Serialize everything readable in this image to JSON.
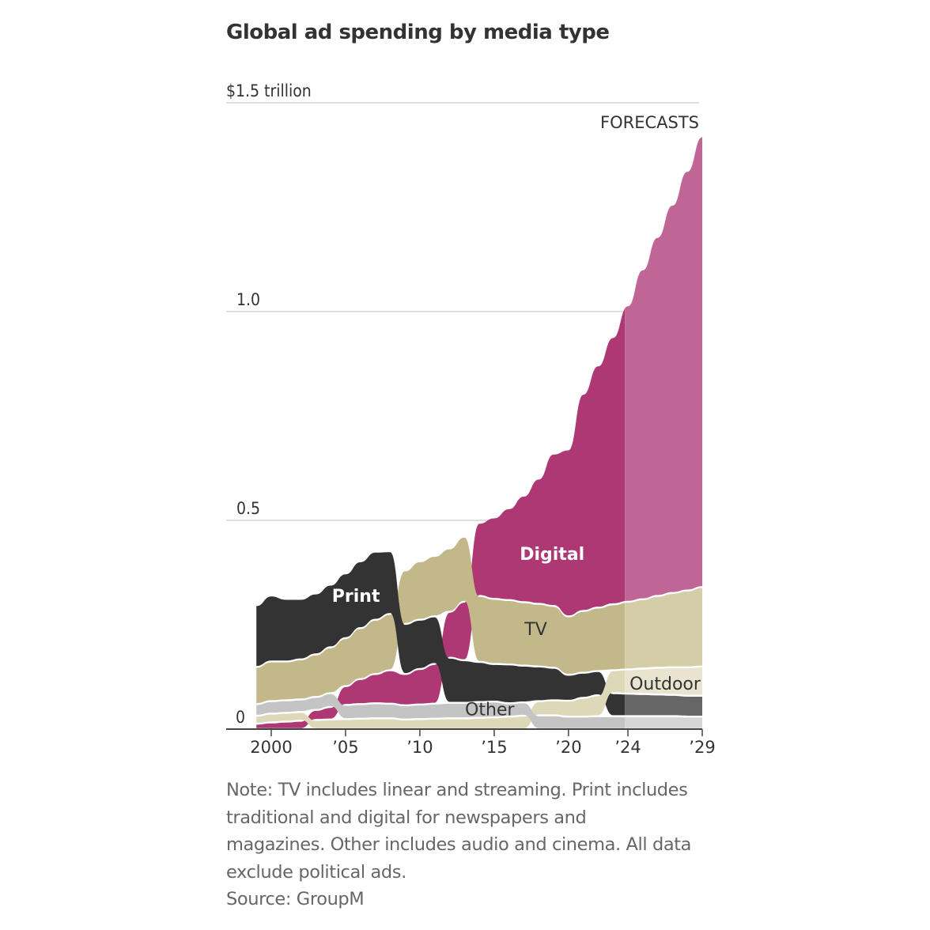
{
  "title": "Global ad spending by media type",
  "note_lines": [
    "Note: TV includes linear and streaming. Print includes",
    "traditional and digital for newspapers and",
    "magazines. Other includes audio and cinema. All data",
    "exclude political ads."
  ],
  "source": "Source: GroupM",
  "chart_data": {
    "type": "area",
    "subtype": "ranked-stacked-area",
    "title": "Global ad spending by media type",
    "ylabel": "$ trillion",
    "ylim": [
      0,
      1.5
    ],
    "y_ticks": [
      {
        "value": 0,
        "label": "0"
      },
      {
        "value": 0.5,
        "label": "0.5"
      },
      {
        "value": 1.0,
        "label": "1.0"
      },
      {
        "value": 1.5,
        "label": "$1.5 trillion"
      }
    ],
    "x_ticks": [
      {
        "value": 2000,
        "label": "2000"
      },
      {
        "value": 2005,
        "label": "’05"
      },
      {
        "value": 2010,
        "label": "’10"
      },
      {
        "value": 2015,
        "label": "’15"
      },
      {
        "value": 2020,
        "label": "’20"
      },
      {
        "value": 2024,
        "label": "’24"
      },
      {
        "value": 2029,
        "label": "’29"
      }
    ],
    "xlim": [
      1998.8,
      2029.4
    ],
    "forecast_start": 2023.8,
    "forecast_label": "FORECASTS",
    "grid": true,
    "x": [
      1999,
      2000,
      2001,
      2002,
      2003,
      2004,
      2005,
      2006,
      2007,
      2008,
      2009,
      2010,
      2011,
      2012,
      2013,
      2014,
      2015,
      2016,
      2017,
      2018,
      2019,
      2020,
      2021,
      2022,
      2023,
      2024,
      2025,
      2026,
      2027,
      2028,
      2029
    ],
    "series": [
      {
        "name": "Digital",
        "label": "Digital",
        "color": "#AD3873",
        "forecast_color": "#BF6696",
        "label_color": "#ffffff",
        "values": [
          0.013,
          0.016,
          0.018,
          0.02,
          0.024,
          0.03,
          0.045,
          0.06,
          0.07,
          0.08,
          0.075,
          0.085,
          0.095,
          0.11,
          0.14,
          0.175,
          0.195,
          0.22,
          0.255,
          0.3,
          0.365,
          0.4,
          0.52,
          0.58,
          0.64,
          0.71,
          0.79,
          0.86,
          0.93,
          1.005,
          1.08
        ]
      },
      {
        "name": "TV",
        "label": "TV",
        "color": "#C2B88A",
        "forecast_color": "#D4CDA8",
        "label_color": "#333333",
        "values": [
          0.089,
          0.095,
          0.093,
          0.096,
          0.102,
          0.11,
          0.115,
          0.122,
          0.13,
          0.135,
          0.128,
          0.14,
          0.145,
          0.152,
          0.156,
          0.158,
          0.156,
          0.154,
          0.152,
          0.15,
          0.148,
          0.14,
          0.148,
          0.152,
          0.158,
          0.162,
          0.166,
          0.172,
          0.178,
          0.184,
          0.19
        ]
      },
      {
        "name": "Print",
        "label": "Print",
        "color": "#333333",
        "forecast_color": "#666666",
        "label_color": "#ffffff",
        "values": [
          0.148,
          0.158,
          0.15,
          0.145,
          0.146,
          0.15,
          0.155,
          0.16,
          0.163,
          0.15,
          0.12,
          0.118,
          0.114,
          0.108,
          0.102,
          0.096,
          0.09,
          0.093,
          0.088,
          0.083,
          0.078,
          0.062,
          0.06,
          0.058,
          0.055,
          0.054,
          0.053,
          0.052,
          0.051,
          0.05,
          0.05
        ]
      },
      {
        "name": "Outdoor",
        "label": "Outdoor",
        "color": "#DDD8B8",
        "forecast_color": "#E8E4CF",
        "label_color": "#333333",
        "values": [
          0.019,
          0.021,
          0.021,
          0.021,
          0.022,
          0.023,
          0.024,
          0.025,
          0.026,
          0.026,
          0.023,
          0.024,
          0.025,
          0.026,
          0.026,
          0.027,
          0.028,
          0.03,
          0.032,
          0.034,
          0.036,
          0.038,
          0.045,
          0.05,
          0.055,
          0.058,
          0.061,
          0.064,
          0.066,
          0.068,
          0.07
        ]
      },
      {
        "name": "Other",
        "label": "Other",
        "color": "#C4C4C4",
        "forecast_color": "#D6D6D6",
        "label_color": "#333333",
        "values": [
          0.028,
          0.03,
          0.03,
          0.03,
          0.031,
          0.033,
          0.034,
          0.035,
          0.036,
          0.035,
          0.034,
          0.035,
          0.036,
          0.037,
          0.037,
          0.038,
          0.038,
          0.032,
          0.032,
          0.033,
          0.033,
          0.03,
          0.03,
          0.031,
          0.031,
          0.031,
          0.031,
          0.031,
          0.031,
          0.03,
          0.03
        ]
      }
    ],
    "annotations": [
      {
        "series": "Print",
        "text": "Print",
        "x": 2005.7,
        "y": 0.305,
        "bold": true
      },
      {
        "series": "Digital",
        "text": "Digital",
        "x": 2018.9,
        "y": 0.405,
        "bold": true
      },
      {
        "series": "TV",
        "text": "TV",
        "x": 2017.8,
        "y": 0.225,
        "bold": false
      },
      {
        "series": "Outdoor",
        "text": "Outdoor",
        "x": 2026.5,
        "y": 0.095,
        "bold": false
      },
      {
        "series": "Other",
        "text": "Other",
        "x": 2014.7,
        "y": 0.033,
        "bold": false
      }
    ]
  }
}
